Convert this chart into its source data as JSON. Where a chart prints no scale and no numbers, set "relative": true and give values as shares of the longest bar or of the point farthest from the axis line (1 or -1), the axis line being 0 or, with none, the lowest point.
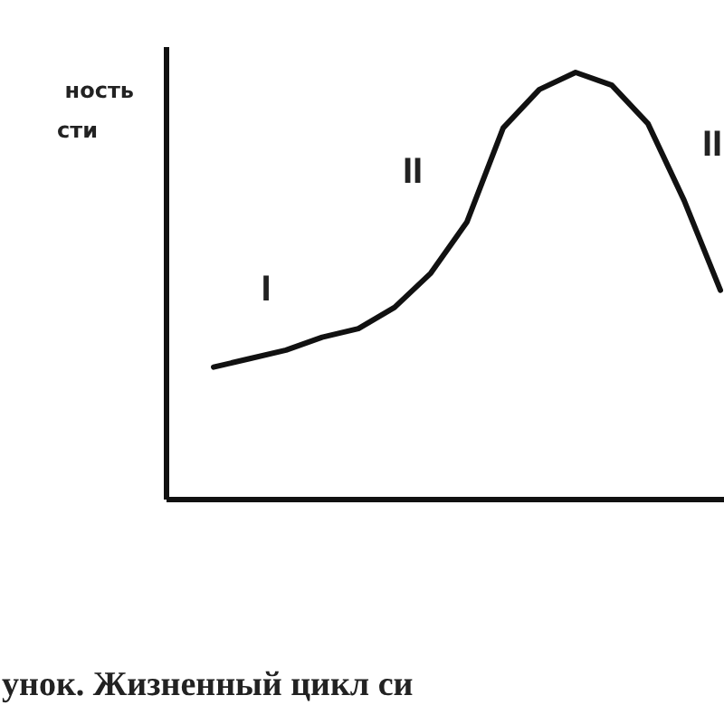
{
  "chart_data": {
    "type": "line",
    "relative": true,
    "ylabel": "ность\nсти",
    "categories": [
      null,
      null,
      null,
      null,
      null,
      null,
      null,
      null,
      null,
      null,
      null,
      null,
      null,
      null,
      null
    ],
    "series": [
      {
        "color": "#111111",
        "values": [
          0.31,
          0.33,
          0.35,
          0.38,
          0.4,
          0.45,
          0.53,
          0.65,
          0.87,
          0.96,
          1.0,
          0.97,
          0.88,
          0.7,
          0.49
        ]
      }
    ],
    "annotations": [
      "I",
      "II",
      "III",
      "унок. Жизненный цикл си"
    ],
    "marker": "none",
    "line_style": "solid"
  }
}
